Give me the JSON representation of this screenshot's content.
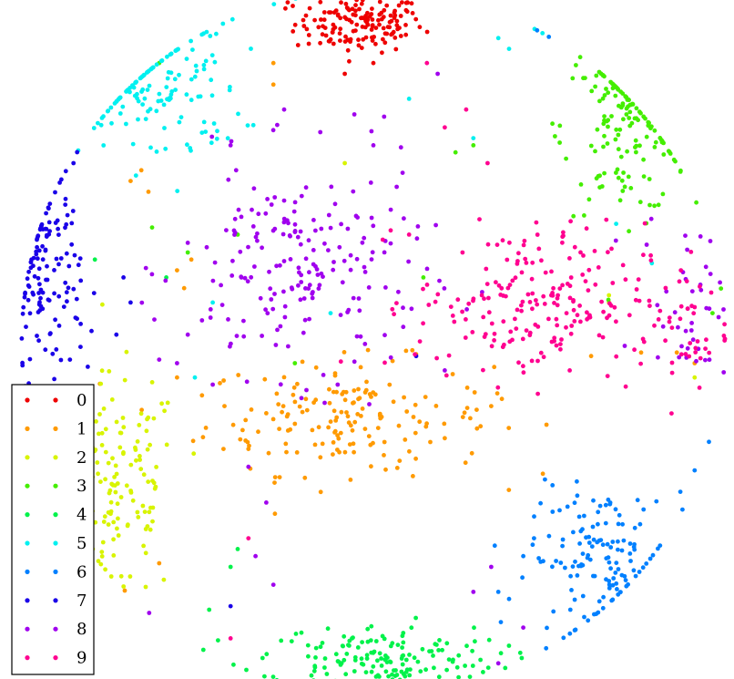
{
  "chart_data": {
    "type": "scatter",
    "title": "",
    "xlabel": "",
    "ylabel": "",
    "grid": false,
    "axes_visible": false,
    "xlim": [
      -1,
      1
    ],
    "ylim": [
      -1,
      1
    ],
    "legend": {
      "placement": "bottom-left",
      "entries": [
        "0",
        "1",
        "2",
        "3",
        "4",
        "5",
        "6",
        "7",
        "8",
        "9"
      ]
    },
    "colors": [
      "#ee0000",
      "#ff9a00",
      "#d8f400",
      "#44ee00",
      "#00f24a",
      "#00f0f0",
      "#0080ff",
      "#1a00e8",
      "#a000ee",
      "#ff0090"
    ],
    "series": [
      {
        "name": "0",
        "color": "#ee0000",
        "clusters": [
          {
            "cx": -0.04,
            "cy": 0.89,
            "sx": 0.09,
            "sy": 0.04,
            "n": 150
          }
        ],
        "points": [
          [
            0.08,
            0.95
          ],
          [
            0.11,
            0.92
          ],
          [
            -0.24,
            0.95
          ],
          [
            -0.16,
            0.97
          ],
          [
            -0.08,
            0.75
          ],
          [
            0.0,
            0.78
          ]
        ]
      },
      {
        "name": "1",
        "color": "#ff9a00",
        "clusters": [
          {
            "cx": -0.07,
            "cy": -0.21,
            "sx": 0.2,
            "sy": 0.08,
            "n": 170
          }
        ],
        "points": [
          [
            -0.55,
            0.2
          ],
          [
            -0.51,
            0.23
          ],
          [
            -0.53,
            0.15
          ],
          [
            -0.68,
            0.45
          ],
          [
            -0.63,
            0.42
          ],
          [
            -0.65,
            0.48
          ],
          [
            -0.48,
            -0.15
          ],
          [
            -0.42,
            -0.3
          ],
          [
            -0.35,
            -0.3
          ],
          [
            0.61,
            -0.04
          ],
          [
            0.75,
            -0.03
          ],
          [
            0.85,
            -0.03
          ],
          [
            0.9,
            -0.06
          ],
          [
            -0.3,
            -0.2
          ],
          [
            -0.55,
            -0.1
          ],
          [
            -0.7,
            -0.7
          ],
          [
            -0.6,
            -0.62
          ],
          [
            0.2,
            -0.27
          ],
          [
            0.33,
            -0.18
          ],
          [
            0.36,
            -0.16
          ],
          [
            -0.28,
            0.72
          ],
          [
            -0.28,
            0.78
          ]
        ]
      },
      {
        "name": "2",
        "color": "#d8f400",
        "clusters": [
          {
            "cx": -0.72,
            "cy": -0.42,
            "sx": 0.09,
            "sy": 0.16,
            "n": 150
          }
        ],
        "points": [
          [
            -0.08,
            0.5
          ],
          [
            0.66,
            0.13
          ],
          [
            0.66,
            0.11
          ],
          [
            0.9,
            -0.1
          ]
        ]
      },
      {
        "name": "3",
        "color": "#44ee00",
        "clusters": [
          {
            "cx": 0.71,
            "cy": 0.6,
            "sx": 0.09,
            "sy": 0.12,
            "n": 150
          }
        ],
        "points": [
          [
            -0.62,
            0.32
          ],
          [
            -0.38,
            0.3
          ],
          [
            0.14,
            0.18
          ],
          [
            0.28,
            0.55
          ],
          [
            0.23,
            0.53
          ],
          [
            -0.52,
            0.25
          ],
          [
            0.98,
            0.15
          ],
          [
            0.95,
            0.08
          ],
          [
            -0.6,
            0.78
          ],
          [
            -0.22,
            -0.06
          ]
        ]
      },
      {
        "name": "4",
        "color": "#00f24a",
        "clusters": [
          {
            "cx": 0.01,
            "cy": -0.89,
            "sx": 0.17,
            "sy": 0.05,
            "n": 170
          }
        ],
        "points": [
          [
            -0.4,
            -0.63
          ],
          [
            -0.38,
            -0.58
          ],
          [
            -0.46,
            -0.75
          ],
          [
            -0.78,
            0.23
          ],
          [
            -0.58,
            0.18
          ]
        ]
      },
      {
        "name": "5",
        "color": "#00f0f0",
        "clusters": [
          {
            "cx": -0.61,
            "cy": 0.71,
            "sx": 0.12,
            "sy": 0.11,
            "n": 140
          }
        ],
        "points": [
          [
            -0.22,
            0.97
          ],
          [
            -0.28,
            0.95
          ],
          [
            0.51,
            0.93
          ],
          [
            0.49,
            0.95
          ],
          [
            0.38,
            0.82
          ],
          [
            0.35,
            0.85
          ],
          [
            0.1,
            0.68
          ],
          [
            0.28,
            0.57
          ],
          [
            -0.45,
            0.11
          ],
          [
            -0.12,
            0.08
          ],
          [
            0.78,
            0.22
          ],
          [
            0.68,
            0.33
          ],
          [
            -0.5,
            -0.1
          ],
          [
            -0.82,
            0.65
          ],
          [
            -0.76,
            0.7
          ]
        ]
      },
      {
        "name": "6",
        "color": "#0080ff",
        "clusters": [
          {
            "cx": 0.64,
            "cy": -0.61,
            "sx": 0.1,
            "sy": 0.1,
            "n": 140
          }
        ],
        "points": [
          [
            0.5,
            0.95
          ],
          [
            0.53,
            0.92
          ],
          [
            0.94,
            -0.28
          ],
          [
            0.9,
            -0.36
          ],
          [
            0.86,
            -0.42
          ],
          [
            0.45,
            -0.55
          ],
          [
            0.42,
            -0.6
          ],
          [
            0.35,
            -0.7
          ],
          [
            0.38,
            -0.72
          ]
        ]
      },
      {
        "name": "7",
        "color": "#1a00e8",
        "clusters": [
          {
            "cx": -0.92,
            "cy": 0.18,
            "sx": 0.05,
            "sy": 0.14,
            "n": 130
          }
        ],
        "points": [
          [
            -0.82,
            0.05
          ],
          [
            -0.85,
            -0.05
          ],
          [
            -0.8,
            -0.07
          ],
          [
            -0.68,
            0.11
          ],
          [
            -0.7,
            0.18
          ],
          [
            -0.72,
            0.02
          ],
          [
            0.12,
            -0.04
          ],
          [
            -0.4,
            -0.74
          ],
          [
            -0.84,
            0.5
          ],
          [
            -0.86,
            0.55
          ]
        ]
      },
      {
        "name": "8",
        "color": "#a000ee",
        "clusters": [
          {
            "cx": -0.2,
            "cy": 0.2,
            "sx": 0.17,
            "sy": 0.15,
            "n": 200
          },
          {
            "cx": 0.89,
            "cy": 0.13,
            "sx": 0.07,
            "sy": 0.12,
            "n": 40
          }
        ],
        "points": [
          [
            -0.52,
            0.02
          ],
          [
            -0.48,
            0.06
          ],
          [
            -0.55,
            -0.06
          ],
          [
            -0.45,
            -0.12
          ],
          [
            -0.35,
            -0.35
          ],
          [
            -0.3,
            -0.45
          ],
          [
            -0.33,
            -0.6
          ],
          [
            -0.28,
            -0.68
          ],
          [
            -0.72,
            -0.87
          ],
          [
            0.33,
            -0.63
          ],
          [
            0.28,
            -0.7
          ],
          [
            0.42,
            -0.8
          ],
          [
            0.35,
            -0.9
          ],
          [
            -0.6,
            -0.05
          ],
          [
            -0.4,
            0.55
          ],
          [
            -0.25,
            0.65
          ],
          [
            0.18,
            0.75
          ],
          [
            0.03,
            0.63
          ],
          [
            0.0,
            0.55
          ],
          [
            0.2,
            -0.08
          ],
          [
            -0.1,
            -0.12
          ]
        ]
      },
      {
        "name": "9",
        "color": "#ff0090",
        "clusters": [
          {
            "cx": 0.44,
            "cy": 0.11,
            "sx": 0.16,
            "sy": 0.11,
            "n": 200
          },
          {
            "cx": 0.86,
            "cy": 0.04,
            "sx": 0.07,
            "sy": 0.1,
            "n": 40
          }
        ],
        "points": [
          [
            -0.4,
            -0.83
          ],
          [
            0.2,
            0.6
          ],
          [
            0.32,
            0.5
          ],
          [
            0.15,
            0.78
          ],
          [
            0.1,
            0.3
          ],
          [
            0.26,
            0.65
          ],
          [
            -0.35,
            -0.55
          ],
          [
            0.5,
            0.0
          ],
          [
            0.55,
            -0.08
          ]
        ]
      }
    ]
  }
}
